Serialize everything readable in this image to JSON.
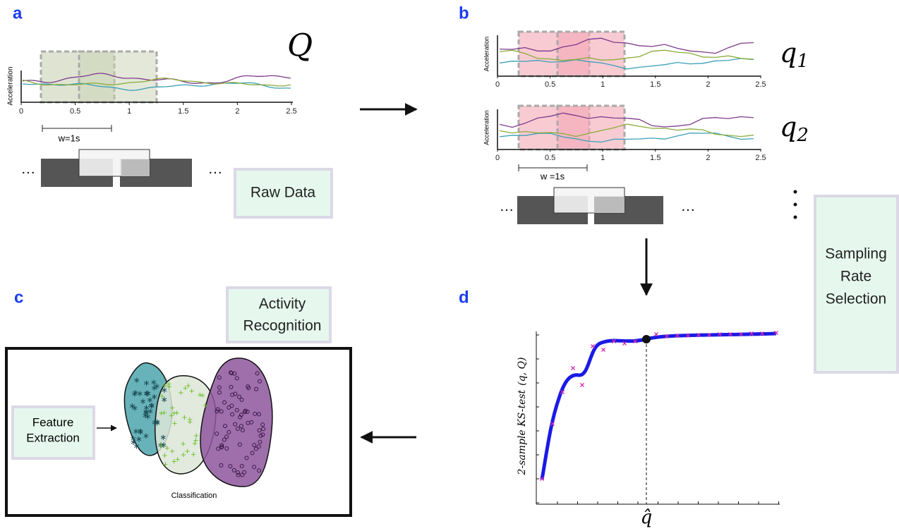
{
  "panels": {
    "a": {
      "label": "a",
      "title": "Q",
      "y_label": "Acceleration",
      "x_ticks": [
        "0",
        "0.5",
        "1",
        "1.5",
        "2",
        "2.5"
      ],
      "window_label": "w=1s",
      "box": "Raw Data"
    },
    "b": {
      "label": "b",
      "plots": [
        {
          "title": {
            "base": "q",
            "subscript": "1"
          },
          "y_label": "Acceleration",
          "x_ticks": [
            "0",
            "0.5",
            "1",
            "1.5",
            "2",
            "2.5"
          ]
        },
        {
          "title": {
            "base": "q",
            "subscript": "2"
          },
          "y_label": "Acceleration",
          "x_ticks": [
            "0",
            "0.5",
            "1",
            "1.5",
            "2",
            "2.5"
          ]
        }
      ],
      "window_label": "w =1s",
      "box": [
        "Sampling",
        "Rate",
        "Selection"
      ]
    },
    "c": {
      "label": "c",
      "box": [
        "Activity",
        "Recognition"
      ],
      "feature_box": [
        "Feature",
        "Extraction"
      ],
      "caption": "Classification"
    },
    "d": {
      "label": "d",
      "y_label": {
        "text": "2-sample KS-test",
        "args": "(q, Q)"
      },
      "x_label": "q̂"
    }
  }
}
